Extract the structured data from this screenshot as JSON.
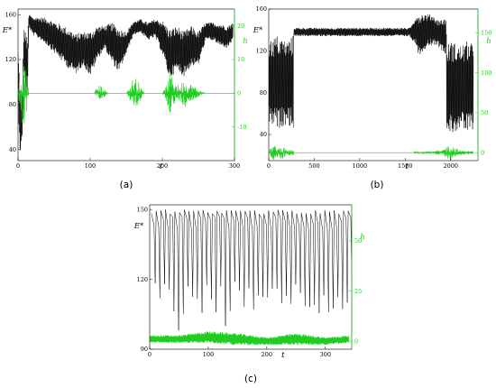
{
  "chart_data": [
    {
      "id": "a",
      "type": "line",
      "caption": "(a)",
      "xlabel": "t",
      "ylabel_left": "E*",
      "ylabel_right": "h",
      "xlim": [
        0,
        300
      ],
      "ylim_left": [
        30,
        165
      ],
      "ylim_right": [
        -20,
        25
      ],
      "xticks": [
        0,
        100,
        200,
        300
      ],
      "yticks_left": [
        40,
        80,
        120,
        160
      ],
      "yticks_right": [
        -10,
        0,
        10,
        20
      ],
      "colors": {
        "left": "#000000",
        "right": "#22cc22"
      },
      "series": [
        {
          "axis": "left",
          "band": "osc",
          "x": [
            0,
            3,
            6,
            8,
            10,
            13,
            15,
            20,
            30,
            40,
            50,
            60,
            70,
            80,
            90,
            100,
            110,
            120,
            130,
            140,
            150,
            160,
            170,
            180,
            190,
            200,
            210,
            220,
            230,
            240,
            250,
            260,
            270,
            280,
            290,
            298
          ],
          "y": [
            105,
            65,
            70,
            130,
            120,
            110,
            155,
            150,
            148,
            145,
            140,
            135,
            130,
            125,
            130,
            125,
            135,
            140,
            135,
            128,
            135,
            148,
            150,
            145,
            148,
            140,
            125,
            130,
            125,
            132,
            130,
            145,
            145,
            142,
            140,
            145
          ],
          "amp": [
            25,
            30,
            25,
            20,
            25,
            30,
            6,
            8,
            10,
            12,
            14,
            16,
            18,
            18,
            15,
            20,
            15,
            10,
            18,
            20,
            10,
            6,
            6,
            8,
            8,
            15,
            22,
            20,
            20,
            18,
            15,
            8,
            8,
            10,
            10,
            8
          ]
        },
        {
          "axis": "right",
          "band": "burst",
          "base": 0,
          "x": [
            0,
            5,
            10,
            15,
            100,
            105,
            110,
            115,
            120,
            125,
            150,
            155,
            160,
            165,
            170,
            175,
            200,
            205,
            210,
            215,
            220,
            225,
            230,
            235,
            240,
            245,
            250,
            260,
            300
          ],
          "amp": [
            0,
            12,
            10,
            0,
            0,
            0,
            2,
            2.5,
            1,
            0,
            0,
            2,
            5,
            4.5,
            2,
            0,
            0,
            2,
            6,
            5,
            3,
            2,
            5,
            2,
            3,
            2,
            1,
            0,
            0
          ]
        }
      ]
    },
    {
      "id": "b",
      "type": "line",
      "caption": "(b)",
      "xlabel": "t",
      "ylabel_left": "E*",
      "ylabel_right": "h",
      "xlim": [
        0,
        2300
      ],
      "ylim_left": [
        15,
        160
      ],
      "ylim_right": [
        -10,
        180
      ],
      "xticks": [
        0,
        500,
        1000,
        1500,
        2000
      ],
      "yticks_left": [
        40,
        80,
        120,
        160
      ],
      "yticks_right": [
        0,
        50,
        100,
        150
      ],
      "colors": {
        "left": "#000000",
        "right": "#22cc22"
      },
      "series": [
        {
          "axis": "left",
          "band": "osc",
          "x": [
            0,
            100,
            200,
            270,
            275,
            1550,
            1580,
            1620,
            1650,
            1700,
            1750,
            1800,
            1850,
            1900,
            1950,
            1955,
            2000,
            2100,
            2200,
            2250
          ],
          "y": [
            90,
            90,
            90,
            90,
            138,
            138,
            138,
            140,
            135,
            138,
            140,
            140,
            138,
            135,
            135,
            85,
            85,
            85,
            85,
            85
          ],
          "amp": [
            40,
            45,
            40,
            45,
            4,
            4,
            8,
            15,
            20,
            18,
            15,
            15,
            12,
            15,
            18,
            40,
            45,
            40,
            45,
            40
          ]
        },
        {
          "axis": "right",
          "band": "burst",
          "base": 0,
          "x": [
            0,
            50,
            100,
            150,
            200,
            270,
            275,
            1590,
            1600,
            1700,
            1750,
            1800,
            1850,
            1900,
            1950,
            2000,
            2050,
            2100,
            2250
          ],
          "amp": [
            3,
            10,
            6,
            8,
            3,
            4,
            0,
            0,
            1,
            1,
            2,
            1,
            3,
            2,
            8,
            10,
            6,
            3,
            2
          ]
        }
      ]
    },
    {
      "id": "c",
      "type": "line",
      "caption": "(c)",
      "xlabel": "t",
      "ylabel_left": "E*",
      "ylabel_right": "h",
      "xlim": [
        0,
        345
      ],
      "ylim_left": [
        90,
        152
      ],
      "ylim_right": [
        -4,
        68
      ],
      "xticks": [
        0,
        100,
        200,
        300
      ],
      "yticks_left": [
        90,
        120,
        150
      ],
      "yticks_right": [
        0,
        25,
        50
      ],
      "colors": {
        "left": "#000000",
        "right": "#22cc22"
      },
      "series": [
        {
          "axis": "left",
          "band": "spikes",
          "period": 8,
          "top": 150,
          "low": 112,
          "deep": [
            [
              45,
              98
            ],
            [
              55,
              105
            ],
            [
              125,
              100
            ],
            [
              255,
              102
            ],
            [
              300,
              106
            ],
            [
              330,
              110
            ]
          ]
        },
        {
          "axis": "right",
          "band": "osc",
          "base": 0,
          "x": [
            0,
            50,
            100,
            150,
            200,
            250,
            300,
            340
          ],
          "y": [
            1,
            1,
            2,
            1,
            0,
            1,
            0,
            1
          ],
          "amp": [
            2,
            2,
            3,
            3,
            2,
            3,
            2,
            2
          ]
        }
      ]
    }
  ]
}
